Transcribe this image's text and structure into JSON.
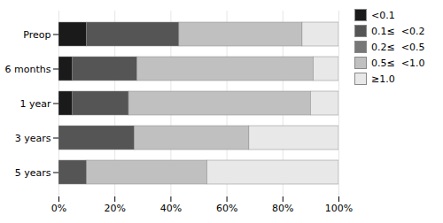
{
  "chart_data": {
    "type": "bar",
    "orientation": "horizontal",
    "stacked": true,
    "categories": [
      "Preop",
      "6 months",
      "1 year",
      "3 years",
      "5 years"
    ],
    "series": [
      {
        "name": "<0.1",
        "color": "#1a1a1a",
        "values": [
          0.1,
          0.05,
          0.05,
          0.0,
          0.0
        ]
      },
      {
        "name": "0.1≤  <0.2",
        "color": "#555555",
        "values": [
          0.33,
          0.23,
          0.2,
          0.27,
          0.1
        ]
      },
      {
        "name": "0.2≤  <0.5",
        "color": "#777777",
        "values": [
          0.0,
          0.0,
          0.0,
          0.0,
          0.0
        ]
      },
      {
        "name": "0.5≤  <1.0",
        "color": "#c0c0c0",
        "values": [
          0.44,
          0.63,
          0.65,
          0.41,
          0.43
        ]
      },
      {
        "name": "≥1.0",
        "color": "#e8e8e8",
        "values": [
          0.13,
          0.09,
          0.1,
          0.32,
          0.47
        ]
      }
    ],
    "xlim": [
      0,
      1
    ],
    "xticks": [
      {
        "value": 0,
        "label": "0%"
      },
      {
        "value": 0.2,
        "label": "20%"
      },
      {
        "value": 0.4,
        "label": "40%"
      },
      {
        "value": 0.6,
        "label": "60%"
      },
      {
        "value": 0.8,
        "label": "80%"
      },
      {
        "value": 1,
        "label": "100%"
      }
    ],
    "grid": true,
    "legend": "upper right"
  }
}
